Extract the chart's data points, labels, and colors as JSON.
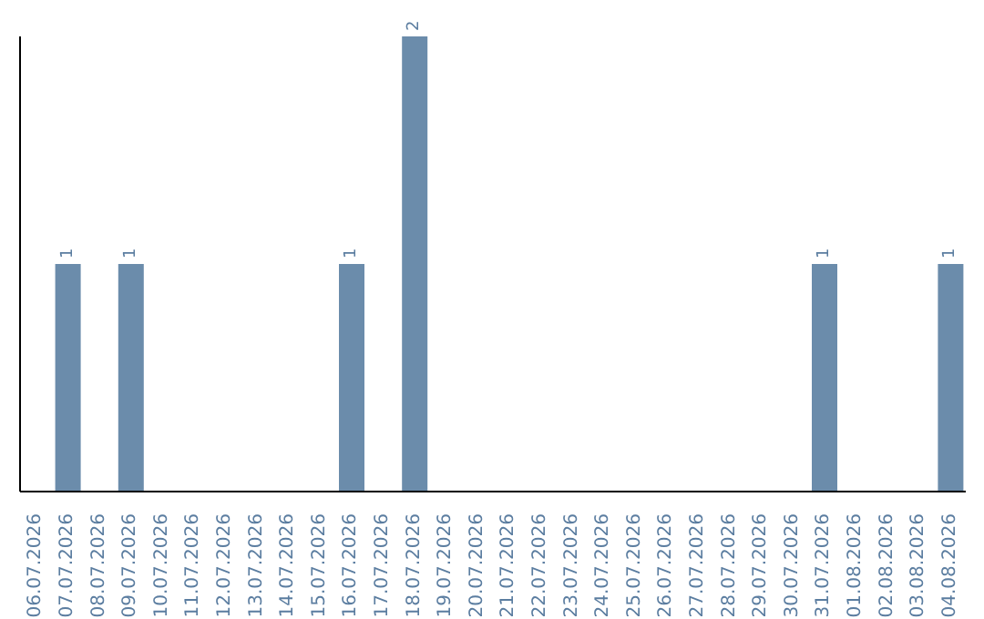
{
  "chart_data": {
    "type": "bar",
    "categories": [
      "06.07.2026",
      "07.07.2026",
      "08.07.2026",
      "09.07.2026",
      "10.07.2026",
      "11.07.2026",
      "12.07.2026",
      "13.07.2026",
      "14.07.2026",
      "15.07.2026",
      "16.07.2026",
      "17.07.2026",
      "18.07.2026",
      "19.07.2026",
      "20.07.2026",
      "21.07.2026",
      "22.07.2026",
      "23.07.2026",
      "24.07.2026",
      "25.07.2026",
      "26.07.2026",
      "27.07.2026",
      "28.07.2026",
      "29.07.2026",
      "30.07.2026",
      "31.07.2026",
      "01.08.2026",
      "02.08.2026",
      "03.08.2026",
      "04.08.2026"
    ],
    "values": [
      0,
      1,
      0,
      1,
      0,
      0,
      0,
      0,
      0,
      0,
      1,
      0,
      2,
      0,
      0,
      0,
      0,
      0,
      0,
      0,
      0,
      0,
      0,
      0,
      0,
      1,
      0,
      0,
      0,
      1
    ],
    "value_labels": [
      null,
      "1",
      null,
      "1",
      null,
      null,
      null,
      null,
      null,
      null,
      "1",
      null,
      "2",
      null,
      null,
      null,
      null,
      null,
      null,
      null,
      null,
      null,
      null,
      null,
      null,
      "1",
      null,
      null,
      null,
      "1"
    ],
    "color": "#6b8cab"
  }
}
